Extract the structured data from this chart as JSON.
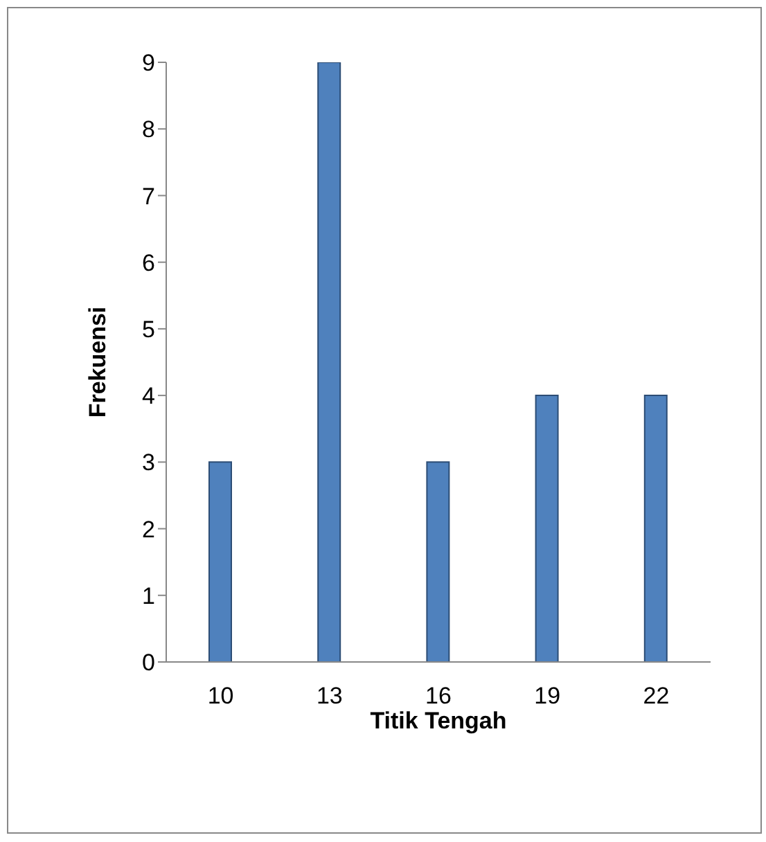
{
  "chart_data": {
    "type": "bar",
    "xlabel": "Titik Tengah",
    "ylabel": "Frekuensi",
    "categories": [
      "10",
      "13",
      "16",
      "19",
      "22"
    ],
    "values": [
      3,
      9,
      3,
      4,
      4
    ],
    "color": "#4f81bd",
    "ylim": [
      0,
      9
    ],
    "yticks": [
      0,
      1,
      2,
      3,
      4,
      5,
      6,
      7,
      8,
      9
    ],
    "grid": false,
    "legend": false
  }
}
